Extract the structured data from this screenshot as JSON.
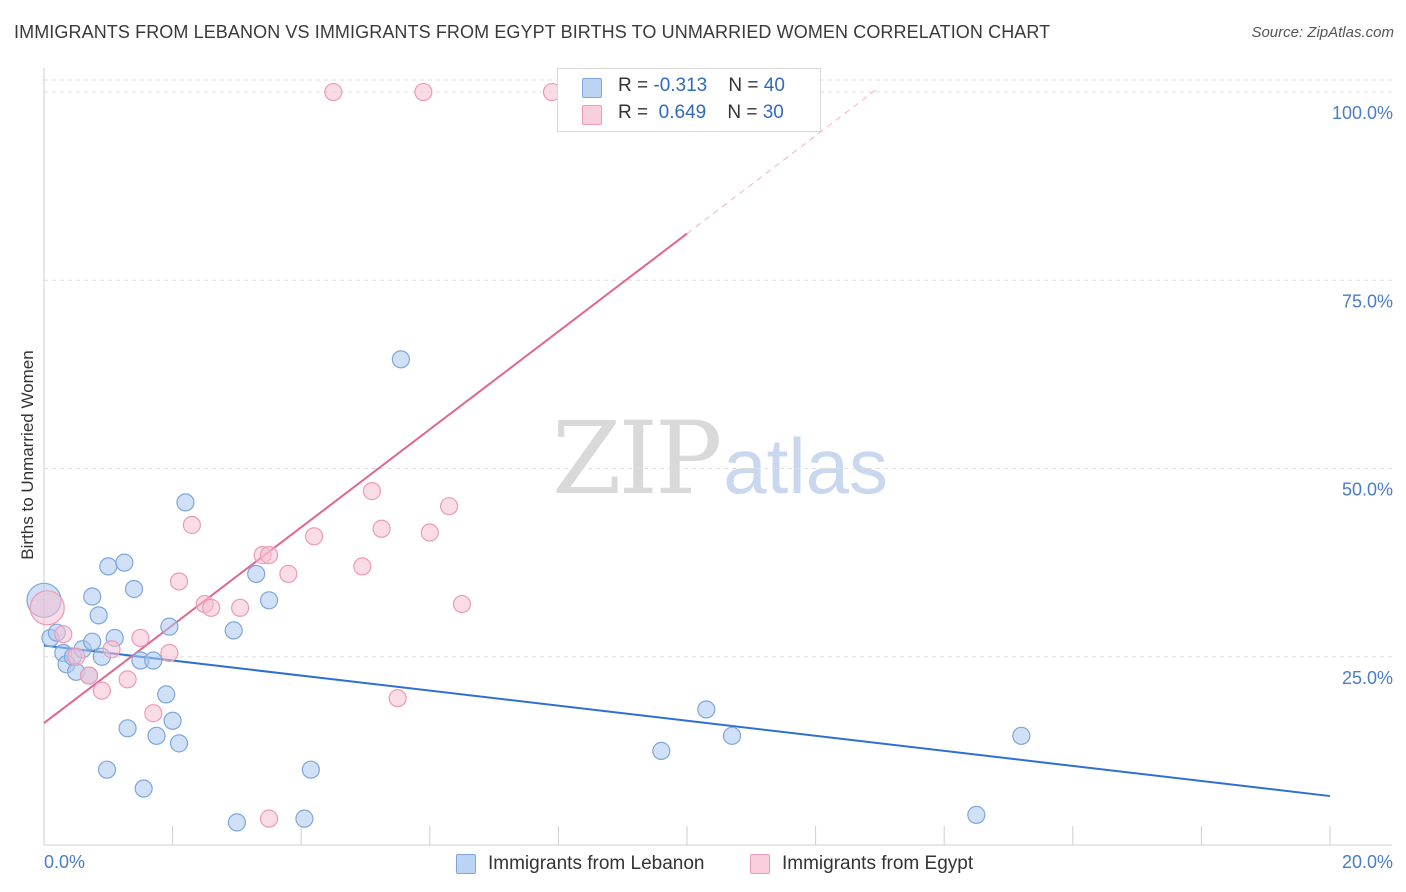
{
  "header": {
    "title": "IMMIGRANTS FROM LEBANON VS IMMIGRANTS FROM EGYPT BIRTHS TO UNMARRIED WOMEN CORRELATION CHART",
    "source": "Source: ZipAtlas.com"
  },
  "watermark": {
    "zip": "ZIP",
    "atlas": "atlas"
  },
  "legend": {
    "rows": [
      {
        "r_label": "R = ",
        "r_value": "-0.313",
        "n_label": "N = ",
        "n_value": "40"
      },
      {
        "r_label": "R = ",
        "r_value": "0.649",
        "n_label": "N = ",
        "n_value": "30"
      }
    ]
  },
  "colors": {
    "lebanon_fill": "#a9c8f0",
    "lebanon_stroke": "#7fa6dc",
    "lebanon_line": "#2f6fd0",
    "egypt_fill": "#f6c0d2",
    "egypt_stroke": "#ec9bb7",
    "egypt_line": "#e0668f",
    "tick_text": "#4a7cc7",
    "grid": "#dedede"
  },
  "chart_data": {
    "type": "scatter",
    "title": "IMMIGRANTS FROM LEBANON VS IMMIGRANTS FROM EGYPT BIRTHS TO UNMARRIED WOMEN CORRELATION CHART",
    "xlabel": "",
    "ylabel": "Births to Unmarried Women",
    "xlim": [
      0,
      20
    ],
    "ylim": [
      0,
      101.6
    ],
    "y_ticks": [
      {
        "value": 25,
        "label": "25.0%"
      },
      {
        "value": 50,
        "label": "50.0%"
      },
      {
        "value": 75,
        "label": "75.0%"
      },
      {
        "value": 100,
        "label": "100.0%"
      }
    ],
    "x_tick_labels": {
      "left": "0.0%",
      "right": "20.0%"
    },
    "series": [
      {
        "name": "Immigrants from Lebanon",
        "r": -0.313,
        "n": 40,
        "trend": {
          "x0": 0,
          "y0": 26.5,
          "x1": 20,
          "y1": 6.5
        },
        "points": [
          [
            0.0,
            32.5,
            "big"
          ],
          [
            0.1,
            27.5
          ],
          [
            0.2,
            28.2
          ],
          [
            0.3,
            25.5
          ],
          [
            0.35,
            24.0
          ],
          [
            0.45,
            25.0
          ],
          [
            0.5,
            23.0
          ],
          [
            0.6,
            26.0
          ],
          [
            0.7,
            22.5
          ],
          [
            0.75,
            27.0
          ],
          [
            0.75,
            33.0
          ],
          [
            0.85,
            30.5
          ],
          [
            0.9,
            25.0
          ],
          [
            1.0,
            37.0
          ],
          [
            1.1,
            27.5
          ],
          [
            1.25,
            37.5
          ],
          [
            1.3,
            15.5
          ],
          [
            1.4,
            34.0
          ],
          [
            1.5,
            24.5
          ],
          [
            1.55,
            7.5
          ],
          [
            1.7,
            24.5
          ],
          [
            1.75,
            14.5
          ],
          [
            1.9,
            20.0
          ],
          [
            1.95,
            29.0
          ],
          [
            2.0,
            16.5
          ],
          [
            2.1,
            13.5
          ],
          [
            2.2,
            45.5
          ],
          [
            2.95,
            28.5
          ],
          [
            3.0,
            3.0
          ],
          [
            3.3,
            36.0
          ],
          [
            3.5,
            32.5
          ],
          [
            4.05,
            3.5
          ],
          [
            4.15,
            10.0
          ],
          [
            5.55,
            64.5
          ],
          [
            0.98,
            10.0
          ],
          [
            9.6,
            12.5
          ],
          [
            10.3,
            18.0
          ],
          [
            10.7,
            14.5
          ],
          [
            14.5,
            4.0
          ],
          [
            15.2,
            14.5
          ]
        ]
      },
      {
        "name": "Immigrants from Egypt",
        "r": 0.649,
        "n": 30,
        "trend": {
          "x0": 0,
          "y0": 16.2,
          "x1": 10.0,
          "y1": 81.2,
          "dash_to_x": 13.0,
          "dash_to_y": 100.7
        },
        "points": [
          [
            0.05,
            31.5,
            "big"
          ],
          [
            0.3,
            28.0
          ],
          [
            0.5,
            25.0
          ],
          [
            0.7,
            22.5
          ],
          [
            0.9,
            20.5
          ],
          [
            1.05,
            26.0
          ],
          [
            1.3,
            22.0
          ],
          [
            1.5,
            27.5
          ],
          [
            1.7,
            17.5
          ],
          [
            1.95,
            25.5
          ],
          [
            2.1,
            35.0
          ],
          [
            2.3,
            42.5
          ],
          [
            2.5,
            32.0
          ],
          [
            2.6,
            31.5
          ],
          [
            3.05,
            31.5
          ],
          [
            3.4,
            38.5
          ],
          [
            3.5,
            38.5
          ],
          [
            3.8,
            36.0
          ],
          [
            3.5,
            3.5
          ],
          [
            4.2,
            41.0
          ],
          [
            4.5,
            100.0
          ],
          [
            4.95,
            37.0
          ],
          [
            5.1,
            47.0
          ],
          [
            5.25,
            42.0
          ],
          [
            5.5,
            19.5
          ],
          [
            6.0,
            41.5
          ],
          [
            6.3,
            45.0
          ],
          [
            6.5,
            32.0
          ],
          [
            7.9,
            100.0
          ],
          [
            5.9,
            100.0
          ]
        ]
      }
    ]
  }
}
